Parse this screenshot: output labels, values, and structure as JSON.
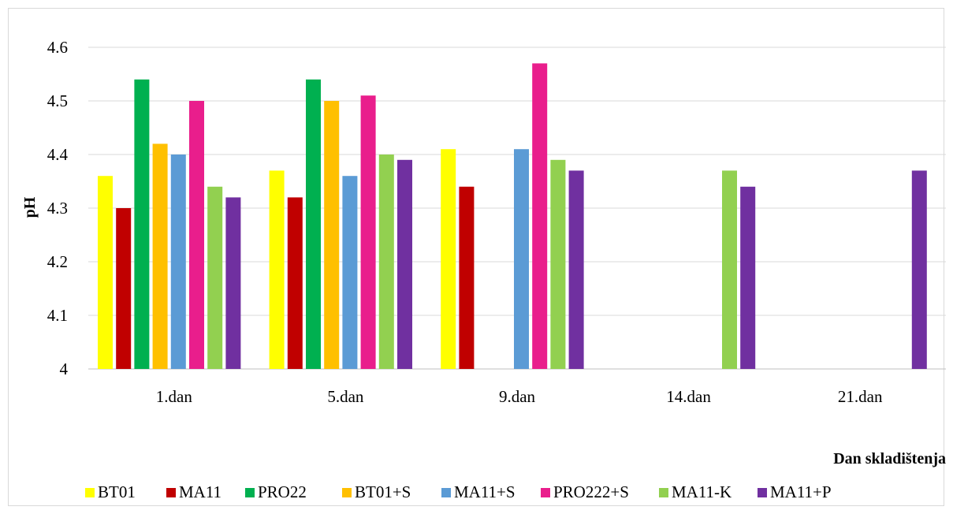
{
  "chart_data": {
    "type": "bar",
    "categories": [
      "1.dan",
      "5.dan",
      "9.dan",
      "14.dan",
      "21.dan"
    ],
    "series": [
      {
        "name": "BT01",
        "color": "#FFFF00",
        "values": [
          4.36,
          4.37,
          4.41,
          null,
          null
        ]
      },
      {
        "name": "MA11",
        "color": "#C00000",
        "values": [
          4.3,
          4.32,
          4.34,
          null,
          null
        ]
      },
      {
        "name": "PRO22",
        "color": "#00B050",
        "values": [
          4.54,
          4.54,
          null,
          null,
          null
        ]
      },
      {
        "name": "BT01+S",
        "color": "#FFC000",
        "values": [
          4.42,
          4.5,
          null,
          null,
          null
        ]
      },
      {
        "name": "MA11+S",
        "color": "#5B9BD5",
        "values": [
          4.4,
          4.36,
          4.41,
          null,
          null
        ]
      },
      {
        "name": "PRO222+S",
        "color": "#E91E8C",
        "values": [
          4.5,
          4.51,
          4.57,
          null,
          null
        ]
      },
      {
        "name": "MA11-K",
        "color": "#92D050",
        "values": [
          4.34,
          4.4,
          4.39,
          4.37,
          null
        ]
      },
      {
        "name": "MA11+P",
        "color": "#7030A0",
        "values": [
          4.32,
          4.39,
          4.37,
          4.34,
          4.37
        ]
      }
    ],
    "ylim": [
      4,
      4.6
    ],
    "yticks": [
      "4",
      "4.1",
      "4.2",
      "4.3",
      "4.4",
      "4.5",
      "4.6"
    ],
    "ylabel": "pH",
    "xlabel": "Dan skladištenja",
    "grid": true,
    "legend_position": "bottom"
  }
}
